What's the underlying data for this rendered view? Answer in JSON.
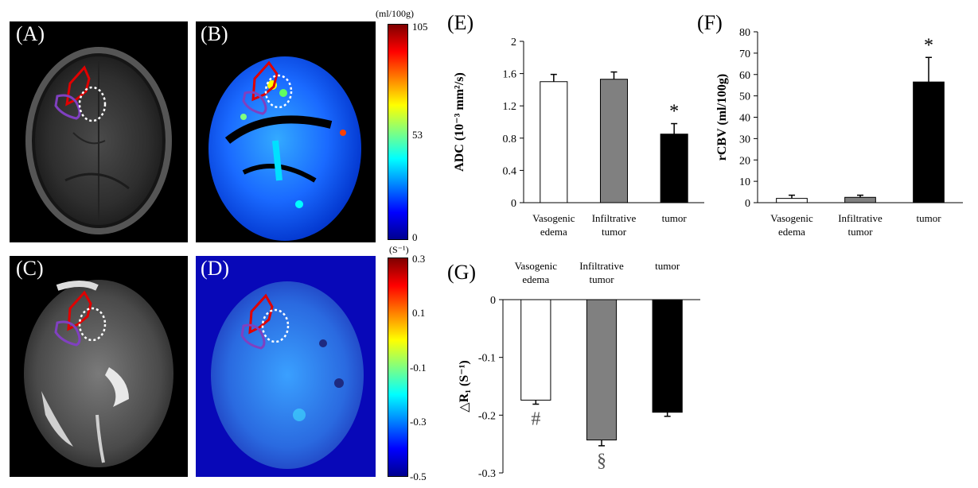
{
  "panels": {
    "A": "(A)",
    "B": "(B)",
    "C": "(C)",
    "D": "(D)",
    "E": "(E)",
    "F": "(F)",
    "G": "(G)"
  },
  "colorbar_top": {
    "unit": "(ml/100g)",
    "ticks": [
      "105",
      "53",
      "0"
    ],
    "colors": [
      "#7f0000",
      "#ff0000",
      "#ff8000",
      "#ffff00",
      "#80ff80",
      "#00ffff",
      "#0080ff",
      "#0000ff",
      "#00008f"
    ]
  },
  "colorbar_bottom": {
    "unit": "(S⁻¹)",
    "ticks": [
      "0.3",
      "0.1",
      "-0.1",
      "-0.3",
      "-0.5"
    ],
    "colors": [
      "#7f0000",
      "#ff0000",
      "#ff8000",
      "#ffff00",
      "#80ff80",
      "#00ffff",
      "#0080ff",
      "#0000ff",
      "#00008f"
    ]
  },
  "chart_data": [
    {
      "panel": "E",
      "type": "bar",
      "categories": [
        "Vasogenic edema",
        "Infiltrative tumor",
        "tumor"
      ],
      "category_lines": [
        [
          "Vasogenic",
          "edema"
        ],
        [
          "Infiltrative",
          "tumor"
        ],
        [
          "tumor"
        ]
      ],
      "values": [
        1.5,
        1.53,
        0.85
      ],
      "errors": [
        0.09,
        0.09,
        0.13
      ],
      "bar_colors": [
        "#ffffff",
        "#808080",
        "#000000"
      ],
      "ylabel": "ADC (10⁻³ mm²/s)",
      "ylim": [
        0,
        2
      ],
      "yticks": [
        "0",
        "0.4",
        "0.8",
        "1.2",
        "1.6",
        "2"
      ],
      "annotations": [
        {
          "category": "tumor",
          "text": "*"
        }
      ]
    },
    {
      "panel": "F",
      "type": "bar",
      "categories": [
        "Vasogenic edema",
        "Infiltrative tumor",
        "tumor"
      ],
      "category_lines": [
        [
          "Vasogenic",
          "edema"
        ],
        [
          "Infiltrative",
          "tumor"
        ],
        [
          "tumor"
        ]
      ],
      "values": [
        2.0,
        2.5,
        56.5
      ],
      "errors": [
        1.5,
        1.0,
        11.5
      ],
      "bar_colors": [
        "#ffffff",
        "#808080",
        "#000000"
      ],
      "ylabel": "rCBV (ml/100g)",
      "ylim": [
        0,
        80
      ],
      "yticks": [
        "0",
        "10",
        "20",
        "30",
        "40",
        "50",
        "60",
        "70",
        "80"
      ],
      "annotations": [
        {
          "category": "tumor",
          "text": "*"
        }
      ]
    },
    {
      "panel": "G",
      "type": "bar",
      "categories": [
        "Vasogenic edema",
        "Infiltrative tumor",
        "tumor"
      ],
      "category_lines": [
        [
          "Vasogenic",
          "edema"
        ],
        [
          "Infiltrative",
          "tumor"
        ],
        [
          "tumor"
        ]
      ],
      "values": [
        -0.174,
        -0.243,
        -0.195
      ],
      "errors": [
        0.007,
        0.01,
        0.007
      ],
      "bar_colors": [
        "#ffffff",
        "#808080",
        "#000000"
      ],
      "ylabel": "△R₁ (S⁻¹)",
      "ylim": [
        -0.3,
        0
      ],
      "yticks": [
        "0",
        "-0.1",
        "-0.2",
        "-0.3"
      ],
      "annotations": [
        {
          "category": "Vasogenic edema",
          "text": "#"
        },
        {
          "category": "Infiltrative tumor",
          "text": "§"
        }
      ]
    }
  ]
}
